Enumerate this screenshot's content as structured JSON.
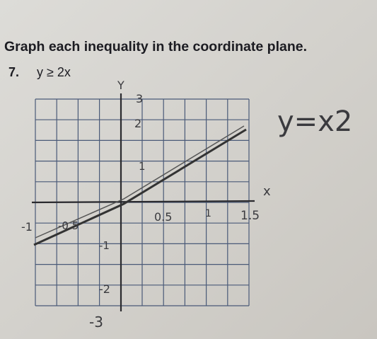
{
  "header": {
    "title": "Graph each inequality in the coordinate plane."
  },
  "problem": {
    "number": "7.",
    "inequality": "y ≥ 2x"
  },
  "handwriting": {
    "equation": "y=x2",
    "y_axis_label": "Y",
    "x_axis_label": "x",
    "y_labels": [
      "3",
      "2",
      "1",
      "-1",
      "-2",
      "-3"
    ],
    "x_labels": [
      "-1",
      "-0.5",
      "0.5",
      "1",
      "1.5"
    ]
  }
}
